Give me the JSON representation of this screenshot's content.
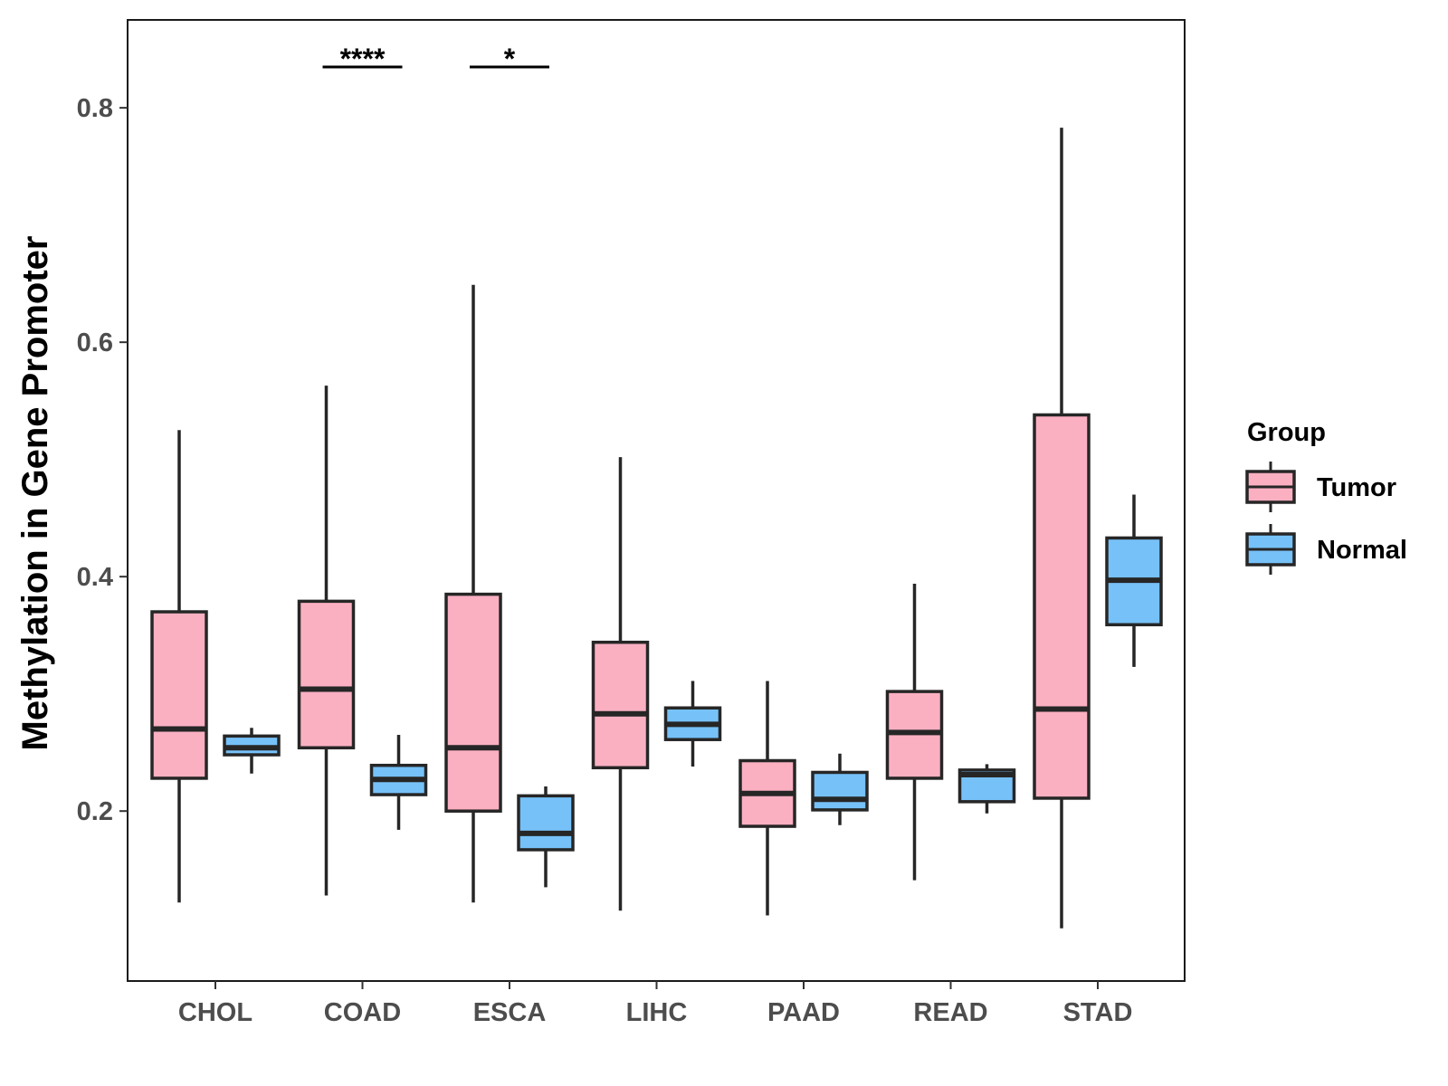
{
  "chart_data": {
    "type": "boxplot",
    "title": "",
    "xlabel": "",
    "ylabel": "Methylation in Gene Promoter",
    "ylim": [
      0.055,
      0.875
    ],
    "yticks": [
      0.2,
      0.4,
      0.6,
      0.8
    ],
    "ytick_labels": [
      "0.2",
      "0.4",
      "0.6",
      "0.8"
    ],
    "categories": [
      "CHOL",
      "COAD",
      "ESCA",
      "LIHC",
      "PAAD",
      "READ",
      "STAD"
    ],
    "legend": {
      "title": "Group",
      "position": "right",
      "entries": [
        {
          "label": "Tumor",
          "color": "#fbb0c2"
        },
        {
          "label": "Normal",
          "color": "#76c1f8"
        }
      ]
    },
    "series": [
      {
        "name": "Tumor",
        "color": "#fbb0c2",
        "boxes": [
          {
            "min": 0.122,
            "q1": 0.228,
            "median": 0.27,
            "q3": 0.37,
            "max": 0.525
          },
          {
            "min": 0.128,
            "q1": 0.254,
            "median": 0.304,
            "q3": 0.379,
            "max": 0.563
          },
          {
            "min": 0.122,
            "q1": 0.2,
            "median": 0.254,
            "q3": 0.385,
            "max": 0.649
          },
          {
            "min": 0.115,
            "q1": 0.237,
            "median": 0.283,
            "q3": 0.344,
            "max": 0.502
          },
          {
            "min": 0.111,
            "q1": 0.187,
            "median": 0.215,
            "q3": 0.243,
            "max": 0.311
          },
          {
            "min": 0.141,
            "q1": 0.228,
            "median": 0.267,
            "q3": 0.302,
            "max": 0.394
          },
          {
            "min": 0.1,
            "q1": 0.211,
            "median": 0.287,
            "q3": 0.538,
            "max": 0.783
          }
        ]
      },
      {
        "name": "Normal",
        "color": "#76c1f8",
        "boxes": [
          {
            "min": 0.232,
            "q1": 0.248,
            "median": 0.254,
            "q3": 0.264,
            "max": 0.271
          },
          {
            "min": 0.184,
            "q1": 0.214,
            "median": 0.227,
            "q3": 0.239,
            "max": 0.265
          },
          {
            "min": 0.135,
            "q1": 0.167,
            "median": 0.181,
            "q3": 0.213,
            "max": 0.221
          },
          {
            "min": 0.238,
            "q1": 0.261,
            "median": 0.274,
            "q3": 0.288,
            "max": 0.311
          },
          {
            "min": 0.188,
            "q1": 0.201,
            "median": 0.21,
            "q3": 0.233,
            "max": 0.249
          },
          {
            "min": 0.198,
            "q1": 0.208,
            "median": 0.231,
            "q3": 0.235,
            "max": 0.24
          },
          {
            "min": 0.323,
            "q1": 0.359,
            "median": 0.397,
            "q3": 0.433,
            "max": 0.47
          }
        ]
      }
    ],
    "significance": [
      {
        "category": "COAD",
        "label": "****"
      },
      {
        "category": "ESCA",
        "label": "*"
      }
    ],
    "grid": false
  }
}
